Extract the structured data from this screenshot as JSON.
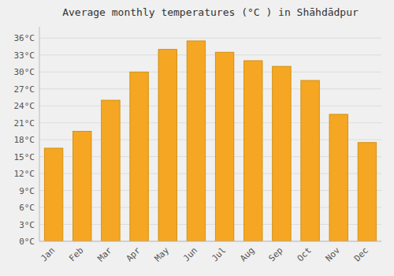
{
  "chart_data": {
    "type": "bar",
    "title": "Average monthly temperatures (°C ) in Shāhdādpur",
    "categories": [
      "Jan",
      "Feb",
      "Mar",
      "Apr",
      "May",
      "Jun",
      "Jul",
      "Aug",
      "Sep",
      "Oct",
      "Nov",
      "Dec"
    ],
    "values": [
      16.5,
      19.5,
      25.0,
      30.0,
      34.0,
      35.5,
      33.5,
      32.0,
      31.0,
      28.5,
      22.5,
      17.5
    ],
    "color": "#F5A623",
    "ylim": [
      0,
      38
    ],
    "yticks": [
      {
        "value": 0,
        "label": "0°C"
      },
      {
        "value": 3,
        "label": "3°C"
      },
      {
        "value": 6,
        "label": "6°C"
      },
      {
        "value": 9,
        "label": "9°C"
      },
      {
        "value": 12,
        "label": "12°C"
      },
      {
        "value": 15,
        "label": "15°C"
      },
      {
        "value": 18,
        "label": "18°C"
      },
      {
        "value": 21,
        "label": "21°C"
      },
      {
        "value": 24,
        "label": "24°C"
      },
      {
        "value": 27,
        "label": "27°C"
      },
      {
        "value": 30,
        "label": "30°C"
      },
      {
        "value": 33,
        "label": "33°C"
      },
      {
        "value": 36,
        "label": "36°C"
      }
    ],
    "grid": true
  }
}
